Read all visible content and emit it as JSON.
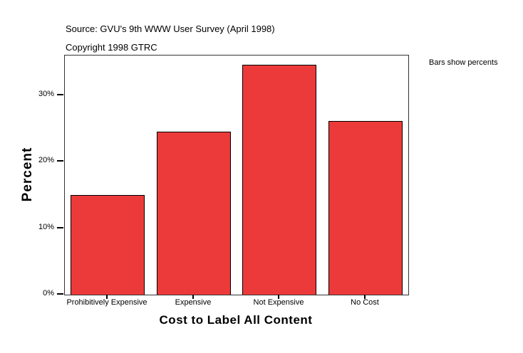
{
  "header": {
    "source": "Source: GVU's 9th WWW User Survey (April 1998)",
    "copyright": "Copyright 1998 GTRC"
  },
  "note": "Bars show percents",
  "chart_data": {
    "type": "bar",
    "categories": [
      "Prohibitively Expensive",
      "Expensive",
      "Not Expensive",
      "No Cost"
    ],
    "values": [
      15.0,
      24.5,
      34.6,
      26.1
    ],
    "title": "",
    "xlabel": "Cost to Label All Content",
    "ylabel": "Percent",
    "ylim": [
      0,
      36
    ],
    "yticks": [
      0,
      10,
      20,
      30
    ],
    "ytick_labels": [
      "0%",
      "10%",
      "20%",
      "30%"
    ],
    "legend": "none",
    "grid": false,
    "bar_color": "#ec3a3a",
    "bar_border_color": "#000000"
  }
}
